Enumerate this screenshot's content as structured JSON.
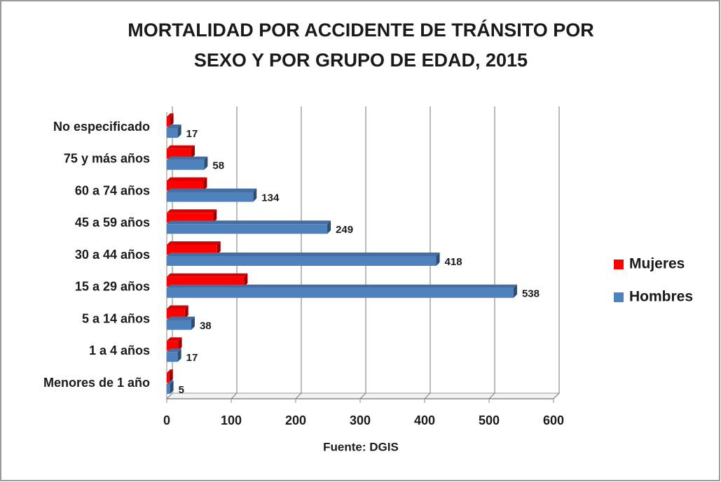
{
  "chart_data": {
    "type": "bar",
    "orientation": "horizontal",
    "title": [
      "MORTALIDAD POR ACCIDENTE DE TRÁNSITO POR",
      "SEXO Y POR GRUPO DE EDAD, 2015"
    ],
    "source": "Fuente: DGIS",
    "categories": [
      "No especificado",
      "75 y más años",
      "60 a 74 años",
      "45 a 59 años",
      "30 a 44 años",
      "15 a 29 años",
      "5 a 14 años",
      "1 a 4 años",
      "Menores de 1 año"
    ],
    "series": [
      {
        "name": "Mujeres",
        "color": "#ff0000",
        "values": [
          5,
          38,
          57,
          72,
          78,
          120,
          28,
          18,
          4
        ]
      },
      {
        "name": "Hombres",
        "color": "#4f81bd",
        "values": [
          17,
          58,
          134,
          249,
          418,
          538,
          38,
          17,
          5
        ]
      }
    ],
    "xlim": [
      0,
      600
    ],
    "xticks": [
      0,
      100,
      200,
      300,
      400,
      500,
      600
    ],
    "grid": true,
    "legend": "right"
  }
}
